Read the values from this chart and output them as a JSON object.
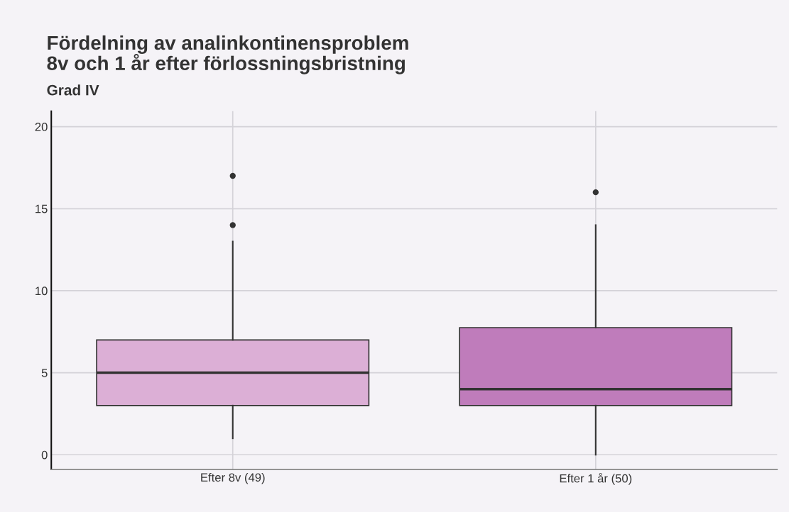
{
  "chart_data": {
    "type": "box",
    "title": "Fördelning av analinkontinensproblem\n8v och 1 år efter förlossningsbristning",
    "subtitle": "Grad IV",
    "categories": [
      "Efter 8v (49)",
      "Efter 1 år (50)"
    ],
    "colors": [
      "#dcafd6",
      "#bf7cbb"
    ],
    "boxes": [
      {
        "low": 1,
        "q1": 3,
        "median": 5,
        "q3": 7,
        "high": 13,
        "outliers": [
          14,
          17
        ]
      },
      {
        "low": 0,
        "q1": 3,
        "median": 4,
        "q3": 7.75,
        "high": 14,
        "outliers": [
          16
        ]
      }
    ],
    "ylim": [
      -0.9,
      20.95
    ],
    "yticks": [
      0,
      5,
      10,
      15,
      20
    ],
    "grid": true,
    "legend": false
  }
}
